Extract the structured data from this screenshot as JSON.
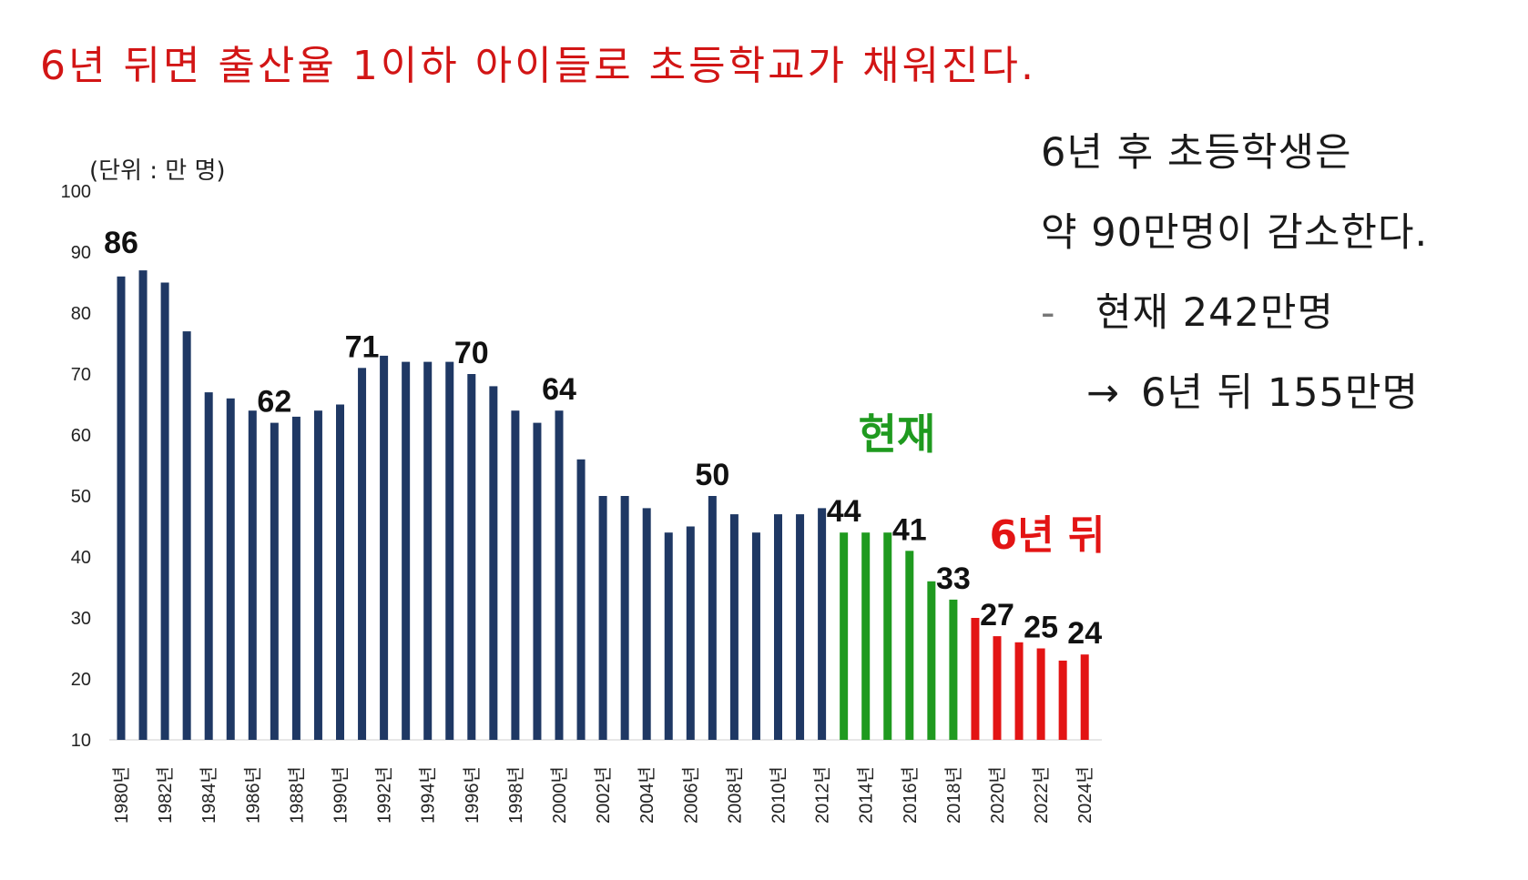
{
  "headline": "6년 뒤면 출산율 1이하 아이들로 초등학교가 채워진다.",
  "side_text": {
    "line1": "6년 후 초등학생은",
    "line2": "약 90만명이 감소한다.",
    "bullet_dash": "-",
    "line3": "현재 242만명",
    "arrow": "→",
    "line4": "6년 뒤 155만명"
  },
  "colors": {
    "past": "#1f3864",
    "current": "#1f9a1f",
    "future": "#e31414",
    "headline": "#d21515"
  },
  "chart_data": {
    "type": "bar",
    "unit_label": "(단위 : 만 명)",
    "ylim": [
      10,
      100
    ],
    "yticks": [
      10,
      20,
      30,
      40,
      50,
      60,
      70,
      80,
      90,
      100
    ],
    "grid": false,
    "categories": [
      "1980년",
      "1981년",
      "1982년",
      "1983년",
      "1984년",
      "1985년",
      "1986년",
      "1987년",
      "1988년",
      "1989년",
      "1990년",
      "1991년",
      "1992년",
      "1993년",
      "1994년",
      "1995년",
      "1996년",
      "1997년",
      "1998년",
      "1999년",
      "2000년",
      "2001년",
      "2002년",
      "2003년",
      "2004년",
      "2005년",
      "2006년",
      "2007년",
      "2008년",
      "2009년",
      "2010년",
      "2011년",
      "2012년",
      "2013년",
      "2014년",
      "2015년",
      "2016년",
      "2017년",
      "2018년",
      "2019년",
      "2020년",
      "2021년",
      "2022년",
      "2023년",
      "2024년"
    ],
    "tick_labels": [
      "1980년",
      "",
      "1982년",
      "",
      "1984년",
      "",
      "1986년",
      "",
      "1988년",
      "",
      "1990년",
      "",
      "1992년",
      "",
      "1994년",
      "",
      "1996년",
      "",
      "1998년",
      "",
      "2000년",
      "",
      "2002년",
      "",
      "2004년",
      "",
      "2006년",
      "",
      "2008년",
      "",
      "2010년",
      "",
      "2012년",
      "",
      "2014년",
      "",
      "2016년",
      "",
      "2018년",
      "",
      "2020년",
      "",
      "2022년",
      "",
      "2024년"
    ],
    "values": [
      86,
      87,
      85,
      77,
      67,
      66,
      64,
      62,
      63,
      64,
      65,
      71,
      73,
      72,
      72,
      72,
      70,
      68,
      64,
      62,
      64,
      56,
      50,
      50,
      48,
      44,
      45,
      50,
      47,
      44,
      47,
      47,
      48,
      44,
      44,
      44,
      41,
      36,
      33,
      30,
      27,
      26,
      25,
      23,
      24
    ],
    "groups": [
      "past",
      "past",
      "past",
      "past",
      "past",
      "past",
      "past",
      "past",
      "past",
      "past",
      "past",
      "past",
      "past",
      "past",
      "past",
      "past",
      "past",
      "past",
      "past",
      "past",
      "past",
      "past",
      "past",
      "past",
      "past",
      "past",
      "past",
      "past",
      "past",
      "past",
      "past",
      "past",
      "past",
      "current",
      "current",
      "current",
      "current",
      "current",
      "current",
      "future",
      "future",
      "future",
      "future",
      "future",
      "future"
    ],
    "data_labels": [
      {
        "index": 0,
        "text": "86"
      },
      {
        "index": 7,
        "text": "62"
      },
      {
        "index": 11,
        "text": "71"
      },
      {
        "index": 16,
        "text": "70"
      },
      {
        "index": 20,
        "text": "64"
      },
      {
        "index": 27,
        "text": "50"
      },
      {
        "index": 33,
        "text": "44"
      },
      {
        "index": 36,
        "text": "41"
      },
      {
        "index": 38,
        "text": "33"
      },
      {
        "index": 40,
        "text": "27"
      },
      {
        "index": 42,
        "text": "25"
      },
      {
        "index": 44,
        "text": "24"
      }
    ],
    "annotations": {
      "current": "현재",
      "future": "6년 뒤"
    }
  }
}
